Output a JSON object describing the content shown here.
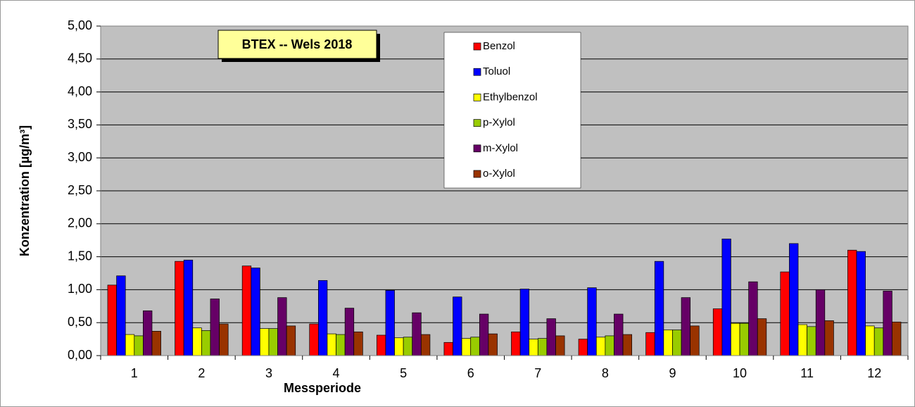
{
  "chart_data": {
    "type": "bar",
    "title": "BTEX -- Wels 2018",
    "xlabel": "Messperiode",
    "ylabel": "Konzentration [µg/m³]",
    "categories": [
      "1",
      "2",
      "3",
      "4",
      "5",
      "6",
      "7",
      "8",
      "9",
      "10",
      "11",
      "12"
    ],
    "series": [
      {
        "name": "Benzol",
        "color": "#ff0000",
        "values": [
          1.07,
          1.43,
          1.36,
          0.48,
          0.31,
          0.2,
          0.36,
          0.25,
          0.35,
          0.71,
          1.27,
          1.6
        ]
      },
      {
        "name": "Toluol",
        "color": "#0000ff",
        "values": [
          1.21,
          1.45,
          1.33,
          1.14,
          0.99,
          0.89,
          1.01,
          1.03,
          1.43,
          1.77,
          1.7,
          1.58
        ]
      },
      {
        "name": "Ethylbenzol",
        "color": "#ffff00",
        "values": [
          0.32,
          0.42,
          0.41,
          0.33,
          0.27,
          0.26,
          0.25,
          0.28,
          0.39,
          0.49,
          0.47,
          0.45
        ]
      },
      {
        "name": "p-Xylol",
        "color": "#99cc00",
        "values": [
          0.3,
          0.38,
          0.41,
          0.32,
          0.28,
          0.28,
          0.26,
          0.3,
          0.39,
          0.49,
          0.44,
          0.42
        ]
      },
      {
        "name": "m-Xylol",
        "color": "#660066",
        "values": [
          0.68,
          0.86,
          0.88,
          0.72,
          0.65,
          0.63,
          0.56,
          0.63,
          0.88,
          1.12,
          1.0,
          0.98
        ]
      },
      {
        "name": "o-Xylol",
        "color": "#993300",
        "values": [
          0.37,
          0.48,
          0.45,
          0.36,
          0.32,
          0.33,
          0.3,
          0.32,
          0.45,
          0.56,
          0.53,
          0.51
        ]
      }
    ],
    "ylim": [
      0,
      5
    ],
    "yticks": [
      {
        "value": 0,
        "label": "0,00"
      },
      {
        "value": 0.5,
        "label": "0,50"
      },
      {
        "value": 1,
        "label": "1,00"
      },
      {
        "value": 1.5,
        "label": "1,50"
      },
      {
        "value": 2,
        "label": "2,00"
      },
      {
        "value": 2.5,
        "label": "2,50"
      },
      {
        "value": 3,
        "label": "3,00"
      },
      {
        "value": 3.5,
        "label": "3,50"
      },
      {
        "value": 4,
        "label": "4,00"
      },
      {
        "value": 4.5,
        "label": "4,50"
      },
      {
        "value": 5,
        "label": "5,00"
      }
    ],
    "grid": true
  }
}
